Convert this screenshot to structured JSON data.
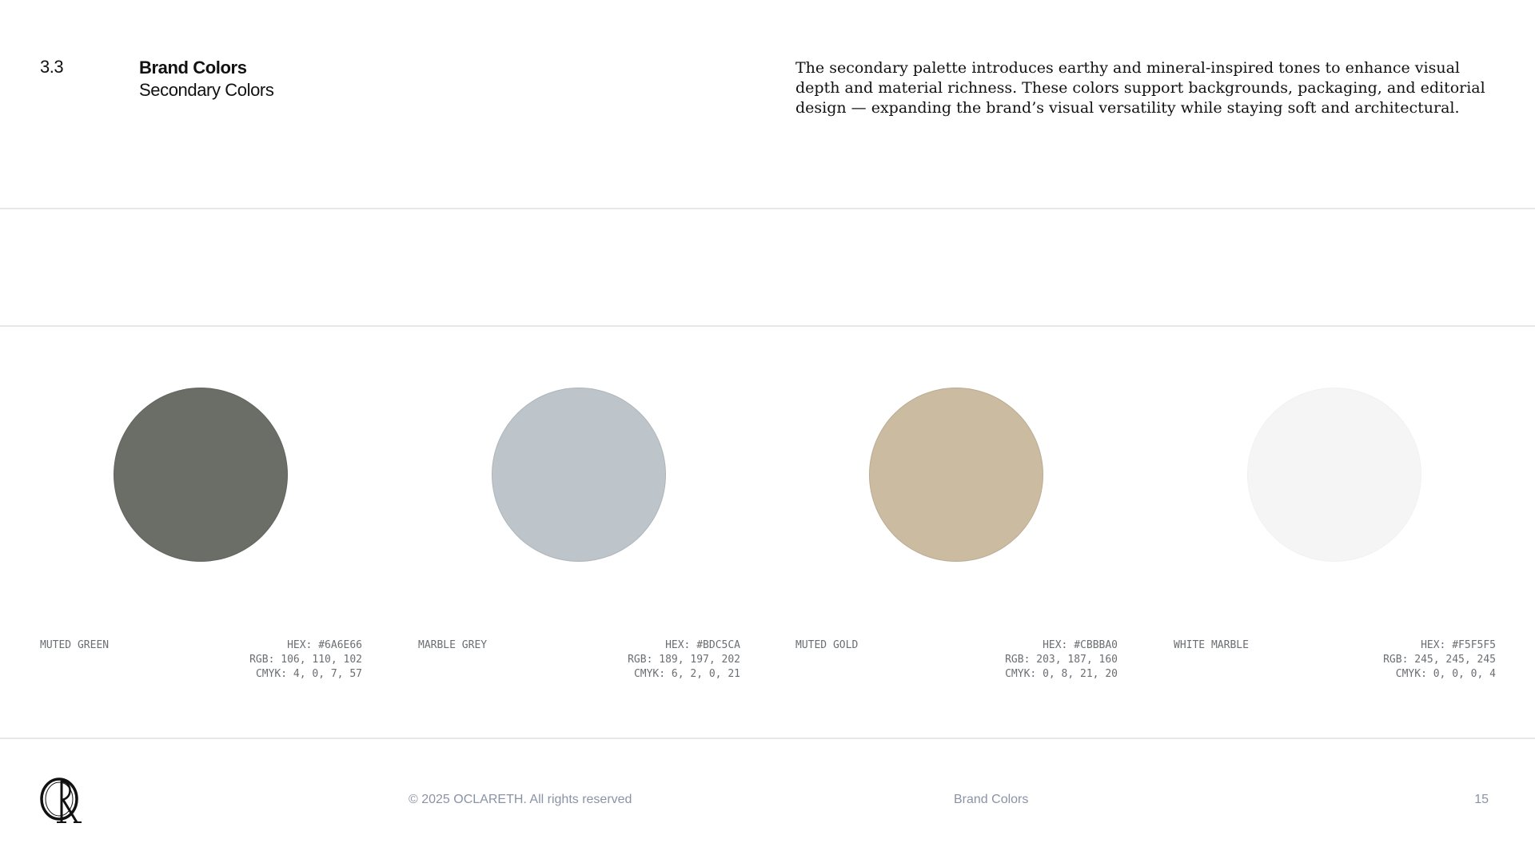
{
  "header": {
    "section_number": "3.3",
    "title": "Brand Colors",
    "subtitle": "Secondary Colors",
    "intro": "The secondary palette introduces earthy and mineral-inspired tones to enhance visual depth and material richness. These colors support backgrounds, packaging, and editorial design — expanding the brand’s visual versatility while staying soft and architectural."
  },
  "swatches": [
    {
      "name": "MUTED GREEN",
      "color": "#6A6E66",
      "hex": "HEX: #6A6E66",
      "rgb": "RGB: 106, 110, 102",
      "cmyk": "CMYK: 4, 0, 7, 57"
    },
    {
      "name": "MARBLE GREY",
      "color": "#BDC5CA",
      "hex": "HEX: #BDC5CA",
      "rgb": "RGB: 189, 197, 202",
      "cmyk": "CMYK: 6, 2, 0, 21"
    },
    {
      "name": "MUTED GOLD",
      "color": "#CBBBA0",
      "hex": "HEX: #CBBBA0",
      "rgb": "RGB: 203, 187, 160",
      "cmyk": "CMYK: 0, 8, 21, 20"
    },
    {
      "name": "WHITE MARBLE",
      "color": "#F5F5F5",
      "hex": "HEX: #F5F5F5",
      "rgb": "RGB: 245, 245, 245",
      "cmyk": "CMYK: 0, 0, 0, 4"
    }
  ],
  "footer": {
    "logo_icon": "oclareth-monogram-icon",
    "copyright": "© 2025 OCLARETH. All rights reserved",
    "section": "Brand Colors",
    "page_number": "15"
  },
  "colors": {
    "text": "#111111",
    "muted_text": "#6b6e72",
    "footer_text": "#8a93a6",
    "divider": "#e7e7e7"
  }
}
